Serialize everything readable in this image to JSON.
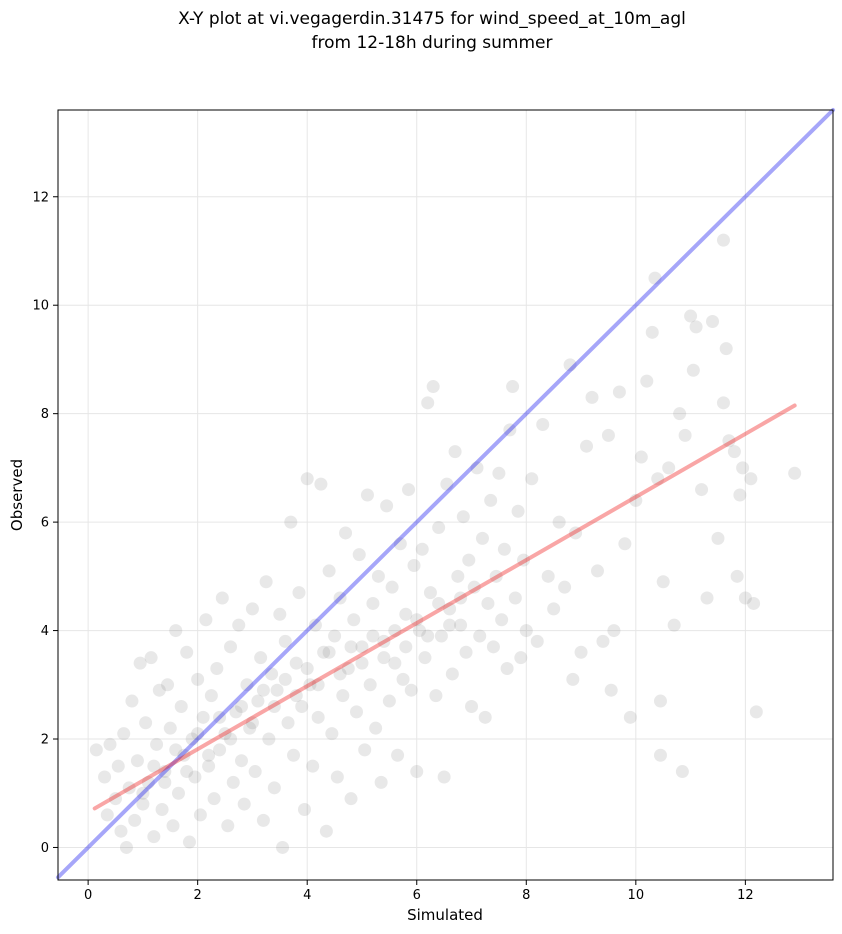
{
  "chart_data": {
    "type": "scatter",
    "title": "X-Y plot at vi.vegagerdin.31475 for wind_speed_at_10m_agl",
    "subtitle": "from 12-18h during summer",
    "xlabel": "Simulated",
    "ylabel": "Observed",
    "xlim": [
      -0.55,
      13.6
    ],
    "ylim": [
      -0.6,
      13.6
    ],
    "xticks": [
      0,
      2,
      4,
      6,
      8,
      10,
      12
    ],
    "yticks": [
      0,
      2,
      4,
      6,
      8,
      10,
      12
    ],
    "grid": true,
    "point_color": "#808080",
    "point_opacity": 0.18,
    "identity_line": {
      "color": "#0000ee",
      "opacity": 0.35
    },
    "regression_line": {
      "color": "#ee0000",
      "opacity": 0.35,
      "x": [
        0.12,
        12.9
      ],
      "y": [
        0.72,
        8.15
      ]
    },
    "points": [
      [
        0.15,
        1.8
      ],
      [
        0.3,
        1.3
      ],
      [
        0.35,
        0.6
      ],
      [
        0.4,
        1.9
      ],
      [
        0.5,
        0.9
      ],
      [
        0.55,
        1.5
      ],
      [
        0.6,
        0.3
      ],
      [
        0.65,
        2.1
      ],
      [
        0.7,
        0.0
      ],
      [
        0.75,
        1.1
      ],
      [
        0.8,
        2.7
      ],
      [
        0.85,
        0.5
      ],
      [
        0.9,
        1.6
      ],
      [
        0.95,
        3.4
      ],
      [
        1.0,
        0.8
      ],
      [
        1.05,
        2.3
      ],
      [
        1.1,
        1.2
      ],
      [
        1.15,
        3.5
      ],
      [
        1.2,
        0.2
      ],
      [
        1.25,
        1.9
      ],
      [
        1.3,
        2.9
      ],
      [
        1.35,
        0.7
      ],
      [
        1.4,
        1.4
      ],
      [
        1.45,
        3.0
      ],
      [
        1.5,
        2.2
      ],
      [
        1.55,
        0.4
      ],
      [
        1.6,
        4.0
      ],
      [
        1.65,
        1.0
      ],
      [
        1.7,
        2.6
      ],
      [
        1.75,
        1.7
      ],
      [
        1.8,
        3.6
      ],
      [
        1.85,
        0.1
      ],
      [
        1.9,
        2.0
      ],
      [
        1.95,
        1.3
      ],
      [
        2.0,
        3.1
      ],
      [
        2.05,
        0.6
      ],
      [
        2.1,
        2.4
      ],
      [
        2.15,
        4.2
      ],
      [
        2.2,
        1.5
      ],
      [
        2.25,
        2.8
      ],
      [
        2.3,
        0.9
      ],
      [
        2.35,
        3.3
      ],
      [
        2.4,
        1.8
      ],
      [
        2.45,
        4.6
      ],
      [
        2.5,
        2.1
      ],
      [
        2.55,
        0.4
      ],
      [
        2.6,
        3.7
      ],
      [
        2.65,
        1.2
      ],
      [
        2.7,
        2.5
      ],
      [
        2.75,
        4.1
      ],
      [
        2.8,
        1.6
      ],
      [
        2.85,
        0.8
      ],
      [
        2.9,
        3.0
      ],
      [
        2.95,
        2.2
      ],
      [
        3.0,
        4.4
      ],
      [
        3.05,
        1.4
      ],
      [
        3.1,
        2.7
      ],
      [
        3.15,
        3.5
      ],
      [
        3.2,
        0.5
      ],
      [
        3.25,
        4.9
      ],
      [
        3.3,
        2.0
      ],
      [
        3.35,
        3.2
      ],
      [
        3.4,
        1.1
      ],
      [
        3.45,
        2.9
      ],
      [
        3.5,
        4.3
      ],
      [
        3.55,
        0.0
      ],
      [
        3.6,
        3.8
      ],
      [
        3.65,
        2.3
      ],
      [
        3.7,
        6.0
      ],
      [
        3.75,
        1.7
      ],
      [
        3.8,
        3.4
      ],
      [
        3.85,
        4.7
      ],
      [
        3.9,
        2.6
      ],
      [
        3.95,
        0.7
      ],
      [
        4.0,
        6.8
      ],
      [
        4.05,
        3.0
      ],
      [
        4.1,
        1.5
      ],
      [
        4.15,
        4.1
      ],
      [
        4.2,
        2.4
      ],
      [
        4.25,
        6.7
      ],
      [
        4.3,
        3.6
      ],
      [
        4.35,
        0.3
      ],
      [
        4.4,
        5.1
      ],
      [
        4.45,
        2.1
      ],
      [
        4.5,
        3.9
      ],
      [
        4.55,
        1.3
      ],
      [
        4.6,
        4.6
      ],
      [
        4.65,
        2.8
      ],
      [
        4.7,
        5.8
      ],
      [
        4.75,
        3.3
      ],
      [
        4.8,
        0.9
      ],
      [
        4.85,
        4.2
      ],
      [
        4.9,
        2.5
      ],
      [
        4.95,
        5.4
      ],
      [
        5.0,
        3.7
      ],
      [
        5.05,
        1.8
      ],
      [
        5.1,
        6.5
      ],
      [
        5.15,
        3.0
      ],
      [
        5.2,
        4.5
      ],
      [
        5.25,
        2.2
      ],
      [
        5.3,
        5.0
      ],
      [
        5.35,
        1.2
      ],
      [
        5.4,
        3.8
      ],
      [
        5.45,
        6.3
      ],
      [
        5.5,
        2.7
      ],
      [
        5.55,
        4.8
      ],
      [
        5.6,
        3.4
      ],
      [
        5.65,
        1.7
      ],
      [
        5.7,
        5.6
      ],
      [
        5.75,
        3.1
      ],
      [
        5.8,
        4.3
      ],
      [
        5.85,
        6.6
      ],
      [
        5.9,
        2.9
      ],
      [
        5.95,
        5.2
      ],
      [
        6.0,
        1.4
      ],
      [
        6.05,
        4.0
      ],
      [
        6.1,
        5.5
      ],
      [
        6.15,
        3.5
      ],
      [
        6.2,
        8.2
      ],
      [
        6.25,
        4.7
      ],
      [
        6.3,
        8.5
      ],
      [
        6.35,
        2.8
      ],
      [
        6.4,
        5.9
      ],
      [
        6.45,
        3.9
      ],
      [
        6.5,
        1.3
      ],
      [
        6.55,
        6.7
      ],
      [
        6.6,
        4.4
      ],
      [
        6.65,
        3.2
      ],
      [
        6.7,
        7.3
      ],
      [
        6.75,
        5.0
      ],
      [
        6.8,
        4.1
      ],
      [
        6.85,
        6.1
      ],
      [
        6.9,
        3.6
      ],
      [
        6.95,
        5.3
      ],
      [
        7.0,
        2.6
      ],
      [
        7.05,
        4.8
      ],
      [
        7.1,
        7.0
      ],
      [
        7.15,
        3.9
      ],
      [
        7.2,
        5.7
      ],
      [
        7.25,
        2.4
      ],
      [
        7.3,
        4.5
      ],
      [
        7.35,
        6.4
      ],
      [
        7.4,
        3.7
      ],
      [
        7.45,
        5.0
      ],
      [
        7.5,
        6.9
      ],
      [
        7.55,
        4.2
      ],
      [
        7.6,
        5.5
      ],
      [
        7.65,
        3.3
      ],
      [
        7.7,
        7.7
      ],
      [
        7.75,
        8.5
      ],
      [
        7.8,
        4.6
      ],
      [
        7.85,
        6.2
      ],
      [
        7.9,
        3.5
      ],
      [
        7.95,
        5.3
      ],
      [
        8.0,
        4.0
      ],
      [
        8.1,
        6.8
      ],
      [
        8.2,
        3.8
      ],
      [
        8.3,
        7.8
      ],
      [
        8.4,
        5.0
      ],
      [
        8.5,
        4.4
      ],
      [
        8.6,
        6.0
      ],
      [
        8.7,
        4.8
      ],
      [
        8.8,
        8.9
      ],
      [
        8.85,
        3.1
      ],
      [
        8.9,
        5.8
      ],
      [
        9.0,
        3.6
      ],
      [
        9.1,
        7.4
      ],
      [
        9.2,
        8.3
      ],
      [
        9.3,
        5.1
      ],
      [
        9.4,
        3.8
      ],
      [
        9.5,
        7.6
      ],
      [
        9.55,
        2.9
      ],
      [
        9.6,
        4.0
      ],
      [
        9.7,
        8.4
      ],
      [
        9.8,
        5.6
      ],
      [
        9.9,
        2.4
      ],
      [
        10.0,
        6.4
      ],
      [
        10.1,
        7.2
      ],
      [
        10.2,
        8.6
      ],
      [
        10.3,
        9.5
      ],
      [
        10.35,
        10.5
      ],
      [
        10.4,
        6.8
      ],
      [
        10.45,
        1.7
      ],
      [
        10.5,
        4.9
      ],
      [
        10.6,
        7.0
      ],
      [
        10.7,
        4.1
      ],
      [
        10.8,
        8.0
      ],
      [
        10.85,
        1.4
      ],
      [
        10.9,
        7.6
      ],
      [
        11.0,
        9.8
      ],
      [
        11.05,
        8.8
      ],
      [
        11.1,
        9.6
      ],
      [
        11.2,
        6.6
      ],
      [
        11.3,
        4.6
      ],
      [
        11.4,
        9.7
      ],
      [
        11.5,
        5.7
      ],
      [
        11.6,
        11.2
      ],
      [
        11.65,
        9.2
      ],
      [
        11.7,
        7.5
      ],
      [
        11.8,
        7.3
      ],
      [
        11.85,
        5.0
      ],
      [
        11.9,
        6.5
      ],
      [
        11.95,
        7.0
      ],
      [
        12.0,
        4.6
      ],
      [
        12.1,
        6.8
      ],
      [
        12.15,
        4.5
      ],
      [
        12.2,
        2.5
      ],
      [
        12.9,
        6.9
      ],
      [
        10.45,
        2.7
      ],
      [
        11.6,
        8.2
      ],
      [
        1.0,
        1.0
      ],
      [
        1.2,
        1.5
      ],
      [
        1.4,
        1.2
      ],
      [
        1.6,
        1.8
      ],
      [
        1.8,
        1.4
      ],
      [
        2.0,
        2.1
      ],
      [
        2.2,
        1.7
      ],
      [
        2.4,
        2.4
      ],
      [
        2.6,
        2.0
      ],
      [
        2.8,
        2.6
      ],
      [
        3.0,
        2.3
      ],
      [
        3.2,
        2.9
      ],
      [
        3.4,
        2.6
      ],
      [
        3.6,
        3.1
      ],
      [
        3.8,
        2.8
      ],
      [
        4.0,
        3.3
      ],
      [
        4.2,
        3.0
      ],
      [
        4.4,
        3.6
      ],
      [
        4.6,
        3.2
      ],
      [
        4.8,
        3.7
      ],
      [
        5.0,
        3.4
      ],
      [
        5.2,
        3.9
      ],
      [
        5.4,
        3.5
      ],
      [
        5.6,
        4.0
      ],
      [
        5.8,
        3.7
      ],
      [
        6.0,
        4.2
      ],
      [
        6.2,
        3.9
      ],
      [
        6.4,
        4.5
      ],
      [
        6.6,
        4.1
      ],
      [
        6.8,
        4.6
      ]
    ]
  }
}
